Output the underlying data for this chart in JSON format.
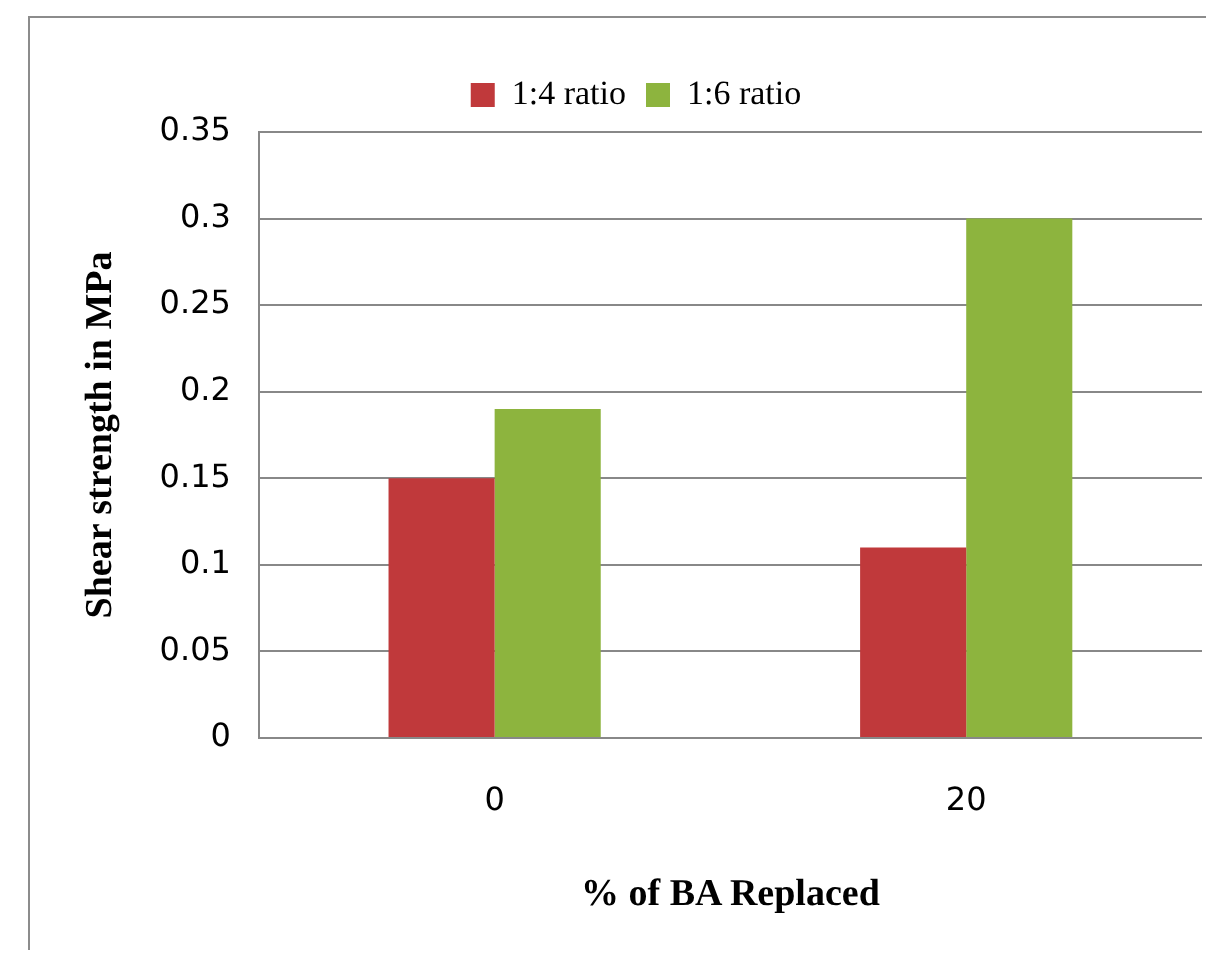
{
  "chart_data": {
    "type": "bar",
    "xlabel": "% of BA Replaced",
    "ylabel": "Shear strength in MPa",
    "categories": [
      "0",
      "20"
    ],
    "series": [
      {
        "name": "1:4 ratio",
        "color": "#c0393b",
        "values": [
          0.15,
          0.11
        ]
      },
      {
        "name": "1:6 ratio",
        "color": "#8db43e",
        "values": [
          0.19,
          0.3
        ]
      }
    ],
    "ylim": [
      0,
      0.35
    ],
    "yticks": [
      0,
      0.05,
      0.1,
      0.15,
      0.2,
      0.25,
      0.3,
      0.35
    ],
    "grid": "y",
    "legend": "top"
  }
}
